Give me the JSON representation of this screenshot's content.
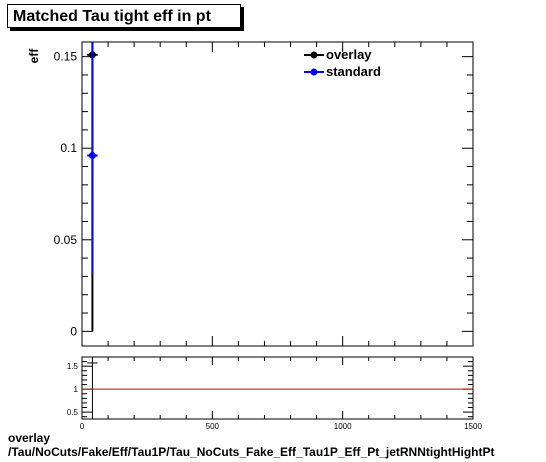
{
  "title": "Matched Tau tight eff in pt",
  "footer": {
    "line1": "overlay",
    "line2": "/Tau/NoCuts/Fake/Eff/Tau1P/Tau_NoCuts_Fake_Eff_Tau1P_Eff_Pt_jetRNNtightHightPt"
  },
  "colors": {
    "overlay": "#000000",
    "standard": "#0000ff",
    "ratio_line": "#cc0000"
  },
  "chart_data": [
    {
      "type": "scatter",
      "title": "Matched Tau tight eff in pt",
      "ylabel": "eff",
      "xlim": [
        0,
        1500
      ],
      "ylim": [
        -0.008,
        0.158
      ],
      "yticks": [
        0,
        0.05,
        0.1,
        0.15
      ],
      "ytick_labels": [
        "0",
        "0.05",
        "0.1",
        "0.15"
      ],
      "legend_position": "top-right",
      "series": [
        {
          "name": "overlay",
          "color": "#000000",
          "points": [
            {
              "x": 40,
              "xerr": 20,
              "y": 0.151,
              "yerr_low": 0.151,
              "yerr_high": 0.007
            }
          ]
        },
        {
          "name": "standard",
          "color": "#0000ff",
          "points": [
            {
              "x": 40,
              "xerr": 20,
              "y": 0.096,
              "yerr_low": 0.065,
              "yerr_high": 0.062
            }
          ]
        }
      ]
    },
    {
      "type": "scatter",
      "xlim": [
        0,
        1500
      ],
      "ylim": [
        0.35,
        1.7
      ],
      "xticks": [
        0,
        500,
        1000,
        1500
      ],
      "xtick_labels": [
        "0",
        "500",
        "1000",
        "1500"
      ],
      "yticks": [
        0.5,
        1,
        1.5
      ],
      "ytick_labels": [
        "0.5",
        "1",
        "1.5"
      ],
      "reference_line": 1,
      "series": [
        {
          "color": "#000000",
          "points": [
            {
              "x": 40,
              "xerr": 20,
              "y": 1.57,
              "yerr_low": 1.22,
              "yerr_high": 0.13
            }
          ]
        }
      ]
    }
  ]
}
